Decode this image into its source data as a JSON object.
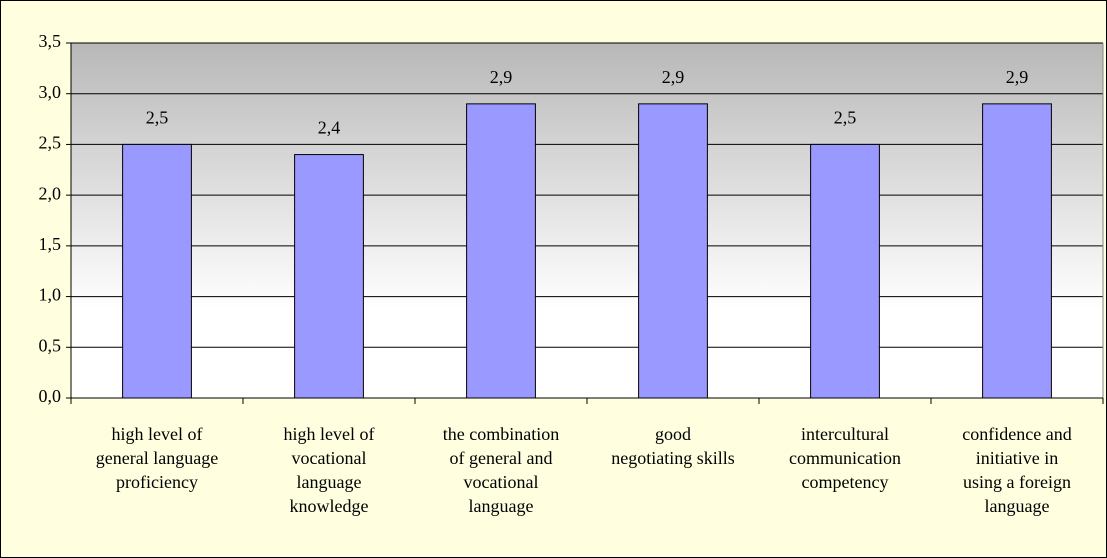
{
  "chart_data": {
    "type": "bar",
    "categories": [
      [
        "high level of",
        "general language",
        "proficiency"
      ],
      [
        "high level of",
        "vocational",
        "language",
        "knowledge"
      ],
      [
        "the combination",
        "of general and",
        "vocational",
        "language"
      ],
      [
        "good",
        "negotiating skills"
      ],
      [
        "intercultural",
        "communication",
        "competency"
      ],
      [
        "confidence and",
        "initiative in",
        "using a foreign",
        "language"
      ]
    ],
    "values": [
      2.5,
      2.4,
      2.9,
      2.9,
      2.5,
      2.9
    ],
    "value_labels": [
      "2,5",
      "2,4",
      "2,9",
      "2,9",
      "2,5",
      "2,9"
    ],
    "color": "#9999ff",
    "ylim": [
      0,
      3.5
    ],
    "yticks": [
      {
        "value": 0,
        "label": "0,0"
      },
      {
        "value": 0.5,
        "label": "0,5"
      },
      {
        "value": 1,
        "label": "1,0"
      },
      {
        "value": 1.5,
        "label": "1,5"
      },
      {
        "value": 2,
        "label": "2,0"
      },
      {
        "value": 2.5,
        "label": "2,5"
      },
      {
        "value": 3,
        "label": "3,0"
      },
      {
        "value": 3.5,
        "label": "3,5"
      }
    ],
    "grid": true
  }
}
